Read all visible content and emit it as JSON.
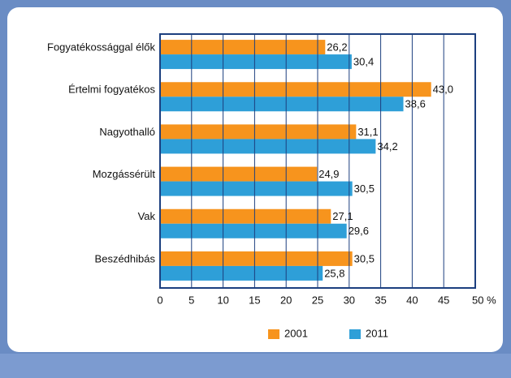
{
  "chart_data": {
    "type": "hbar",
    "categories": [
      "Fogyatékossággal élők",
      "Értelmi fogyatékos",
      "Nagyothalló",
      "Mozgássérült",
      "Vak",
      "Beszédhibás"
    ],
    "series": [
      {
        "name": "2001",
        "color": "#f7941d",
        "values": [
          26.2,
          43.0,
          31.1,
          24.9,
          27.1,
          30.5
        ],
        "value_labels": [
          "26,2",
          "43,0",
          "31,1",
          "24,9",
          "27,1",
          "30,5"
        ]
      },
      {
        "name": "2011",
        "color": "#2e9fd8",
        "values": [
          30.4,
          38.6,
          34.2,
          30.5,
          29.6,
          25.8
        ],
        "value_labels": [
          "30,4",
          "38,6",
          "34,2",
          "30,5",
          "29,6",
          "25,8"
        ]
      }
    ],
    "xlim": [
      0,
      50
    ],
    "xticks": [
      0,
      5,
      10,
      15,
      20,
      25,
      30,
      35,
      40,
      45,
      {
        "value": 50,
        "label": "50 %"
      }
    ],
    "grid": true
  }
}
